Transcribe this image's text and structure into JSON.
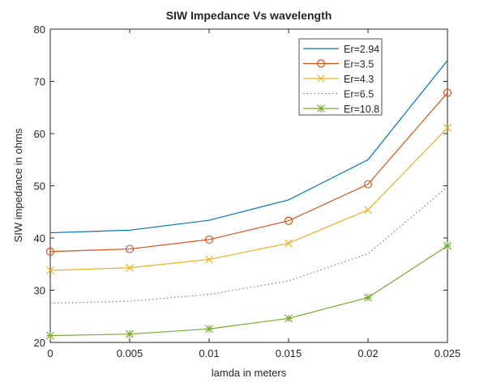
{
  "chart_data": {
    "type": "line",
    "title": "SIW Impedance Vs wavelength",
    "xlabel": "lamda in meters",
    "ylabel": "SIW impedance in ohms",
    "xlim": [
      0,
      0.025
    ],
    "ylim": [
      20,
      80
    ],
    "x_ticks": [
      "0",
      "0.005",
      "0.01",
      "0.015",
      "0.02",
      "0.025"
    ],
    "y_ticks": [
      "20",
      "30",
      "40",
      "50",
      "60",
      "70",
      "80"
    ],
    "grid": false,
    "legend_position": "top-right",
    "x": [
      0,
      0.005,
      0.01,
      0.015,
      0.02,
      0.025
    ],
    "series": [
      {
        "name": "Er=2.94",
        "color": "#0072BD",
        "line": "solid",
        "marker": "none",
        "values": [
          41.0,
          41.5,
          43.4,
          47.3,
          55.0,
          74.0
        ]
      },
      {
        "name": "Er=3.5",
        "color": "#D95319",
        "line": "solid",
        "marker": "circle",
        "values": [
          37.4,
          37.9,
          39.7,
          43.3,
          50.3,
          67.8
        ]
      },
      {
        "name": "Er=4.3",
        "color": "#EDB120",
        "line": "solid",
        "marker": "x",
        "values": [
          33.8,
          34.3,
          35.9,
          39.0,
          45.4,
          61.1
        ]
      },
      {
        "name": "Er=6.5",
        "color": "#7E7E7E",
        "line": "dotted",
        "marker": "none",
        "values": [
          27.5,
          27.9,
          29.2,
          31.8,
          37.0,
          49.8
        ]
      },
      {
        "name": "Er=10.8",
        "color": "#77AC30",
        "line": "solid",
        "marker": "asterisk",
        "values": [
          21.3,
          21.6,
          22.6,
          24.6,
          28.6,
          38.5
        ]
      }
    ]
  }
}
